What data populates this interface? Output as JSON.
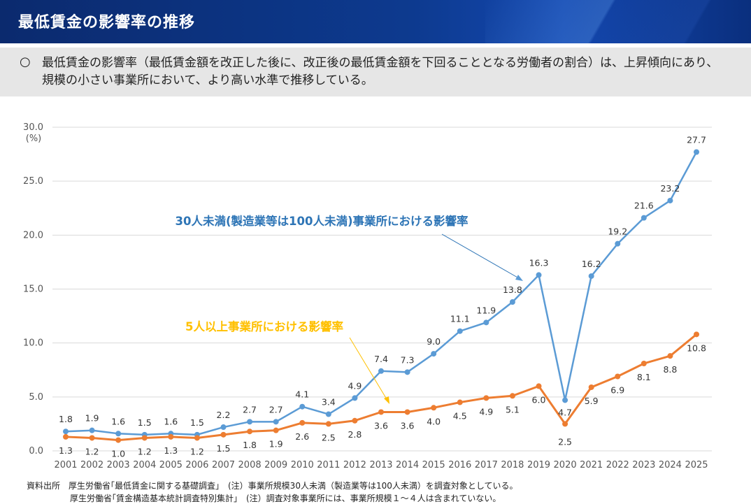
{
  "header": {
    "title": "最低賃金の影響率の推移"
  },
  "summary": {
    "bullet": "○",
    "text": "最低賃金の影響率（最低賃金額を改正した後に、改正後の最低賃金額を下回ることとなる労働者の割合）は、上昇傾向にあり、規模の小さい事業所において、より高い水準で推移している。"
  },
  "colors": {
    "series_30": "#5b9bd5",
    "series_5": "#ed7d31",
    "label_30": "#2e75b6",
    "label_5": "#ffc000"
  },
  "chart_data": {
    "type": "line",
    "ylabel": "(%)",
    "ylim": [
      0,
      30
    ],
    "yticks": [
      "0.0",
      "5.0",
      "10.0",
      "15.0",
      "20.0",
      "25.0",
      "30.0"
    ],
    "grid": true,
    "x": [
      "2001",
      "2002",
      "2003",
      "2004",
      "2005",
      "2006",
      "2007",
      "2008",
      "2009",
      "2010",
      "2011",
      "2012",
      "2013",
      "2014",
      "2015",
      "2016",
      "2017",
      "2018",
      "2019",
      "2020",
      "2021",
      "2022",
      "2023",
      "2024",
      "2025"
    ],
    "series": [
      {
        "name": "30人未満(製造業等は100人未満)事業所における影響率",
        "values": [
          1.8,
          1.9,
          1.6,
          1.5,
          1.6,
          1.5,
          2.2,
          2.7,
          2.7,
          4.1,
          3.4,
          4.9,
          7.4,
          7.3,
          9.0,
          11.1,
          11.9,
          13.8,
          16.3,
          4.7,
          16.2,
          19.2,
          21.6,
          23.2,
          27.7
        ],
        "labels": [
          "1.8",
          "1.9",
          "1.6",
          "1.5",
          "1.6",
          "1.5",
          "2.2",
          "2.7",
          "2.7",
          "4.1",
          "3.4",
          "4.9",
          "7.4",
          "7.3",
          "9.0",
          "11.1",
          "11.9",
          "13.8",
          "16.3",
          "4.7",
          "16.2",
          "19.2",
          "21.6",
          "23.2",
          "27.7"
        ]
      },
      {
        "name": "5人以上事業所における影響率",
        "values": [
          1.3,
          1.2,
          1.0,
          1.2,
          1.3,
          1.2,
          1.5,
          1.8,
          1.9,
          2.6,
          2.5,
          2.8,
          3.6,
          3.6,
          4.0,
          4.5,
          4.9,
          5.1,
          6.0,
          2.5,
          5.9,
          6.9,
          8.1,
          8.8,
          10.8
        ],
        "labels": [
          "1.3",
          "1.2",
          "1.0",
          "1.2",
          "1.3",
          "1.2",
          "1.5",
          "1.8",
          "1.9",
          "2.6",
          "2.5",
          "2.8",
          "3.6",
          "3.6",
          "4.0",
          "4.5",
          "4.9",
          "5.1",
          "6.0",
          "2.5",
          "5.9",
          "6.9",
          "8.1",
          "8.8",
          "10.8"
        ]
      }
    ]
  },
  "notes": {
    "line1": "資料出所　厚生労働省｢最低賃金に関する基礎調査｣　(注）事業所規模30人未満（製造業等は100人未満）を調査対象としている。",
    "line2": "厚生労働省｢賃金構造基本統計調査特別集計｣　(注）調査対象事業所には、事業所規模１～４人は含まれていない。"
  }
}
